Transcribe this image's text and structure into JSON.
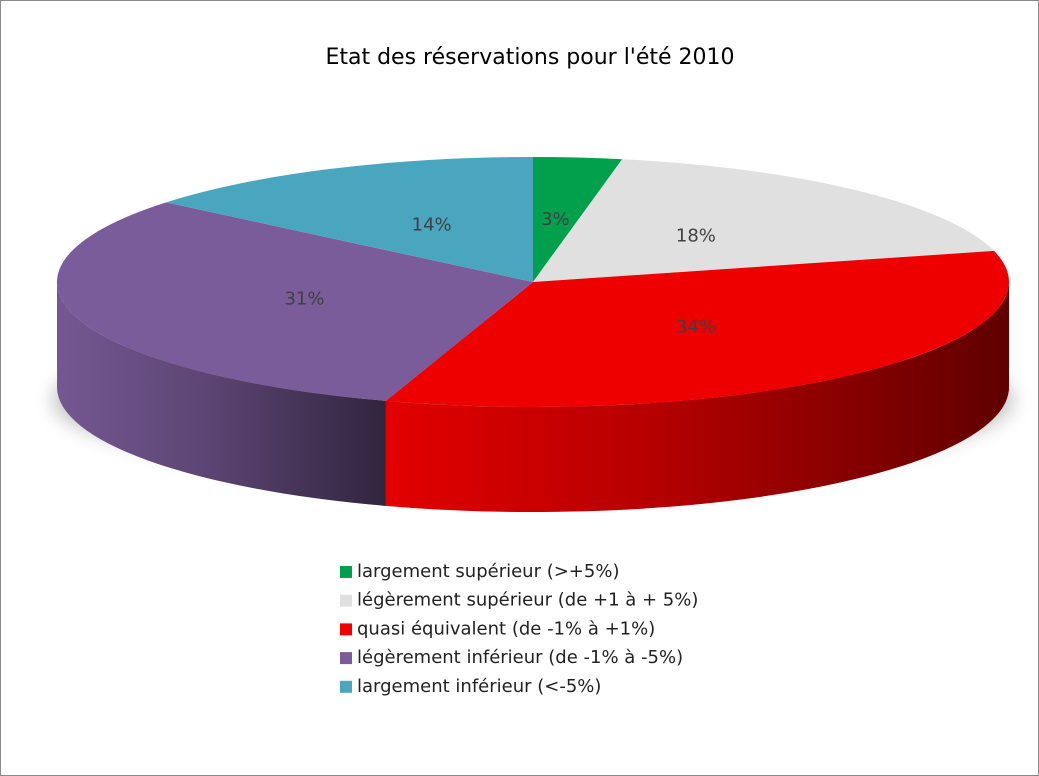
{
  "chart_data": {
    "type": "pie",
    "title": "Etat des réservations pour l'été 2010",
    "categories": [
      "largement supérieur (>+5%)",
      "légèrement supérieur (de +1 à + 5%)",
      "quasi équivalent (de -1% à +1%)",
      "légèrement inférieur (de -1% à -5%)",
      "largement inférieur (<-5%)"
    ],
    "values": [
      3,
      18,
      34,
      31,
      14
    ],
    "value_labels": [
      "3%",
      "18%",
      "34%",
      "31%",
      "14%"
    ],
    "colors": [
      "#00a04c",
      "#e0e0e0",
      "#ee0000",
      "#7b5c9a",
      "#4aa6be"
    ],
    "legend": "bottom"
  }
}
